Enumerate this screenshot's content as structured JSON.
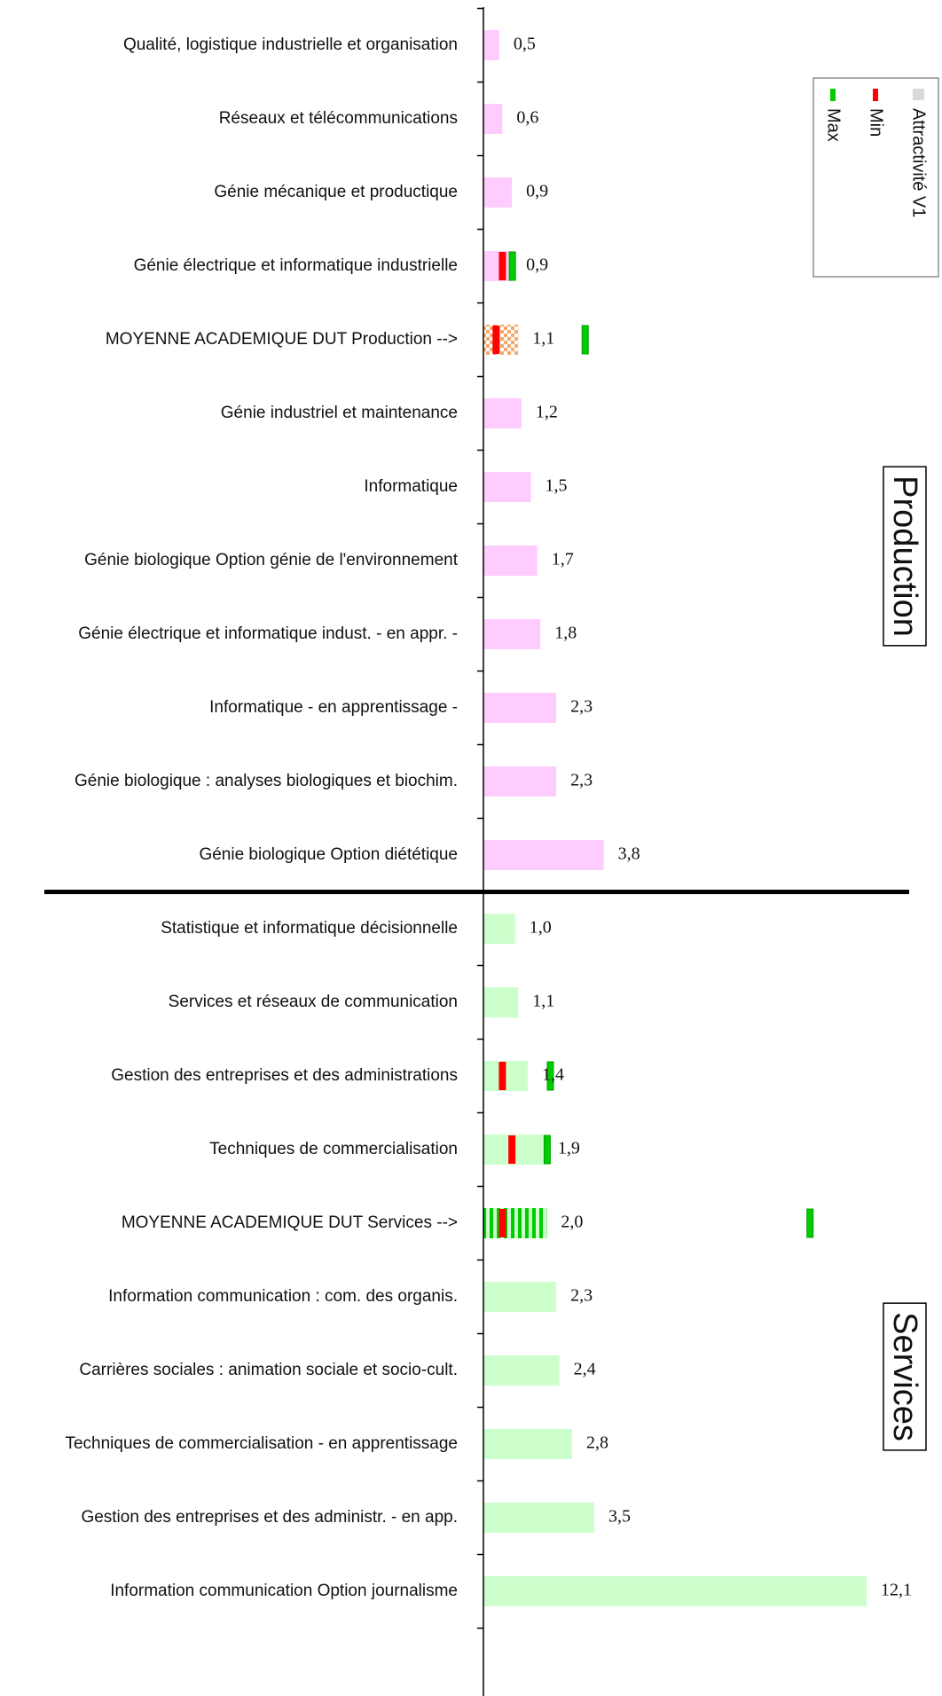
{
  "chart_data": {
    "type": "bar",
    "orientation": "horizontal",
    "xlim": [
      0,
      13
    ],
    "legend": {
      "placement": "top-right",
      "entries": [
        {
          "key": "attractivite",
          "label": "Attractivité V1",
          "color": "#d9d9d9"
        },
        {
          "key": "min",
          "label": "Min",
          "color": "#ff0000"
        },
        {
          "key": "max",
          "label": "Max",
          "color": "#00cc00"
        }
      ]
    },
    "colors": {
      "production_bar": "#ffccff",
      "services_bar": "#ccffcc",
      "min_marker": "#ff0000",
      "max_marker": "#00cc00",
      "production_average_pattern": "#f5a86b",
      "axis": "#000000"
    },
    "groups": [
      {
        "name": "Production",
        "color_key": "production_bar",
        "categories": [
          {
            "label": "Qualité, logistique industrielle et organisation",
            "value": 0.5,
            "value_label": "0,5"
          },
          {
            "label": "Réseaux et télécommunications",
            "value": 0.6,
            "value_label": "0,6"
          },
          {
            "label": "Génie mécanique et productique",
            "value": 0.9,
            "value_label": "0,9"
          },
          {
            "label": "Génie électrique et informatique industrielle",
            "value": 0.9,
            "value_label": "0,9",
            "min": 0.6,
            "max": 0.9
          },
          {
            "label": "MOYENNE ACADEMIQUE DUT Production  -->",
            "value": 1.1,
            "value_label": "1,1",
            "min": 0.4,
            "max": 3.2,
            "average": true,
            "pattern": "checker"
          },
          {
            "label": "Génie industriel et maintenance",
            "value": 1.2,
            "value_label": "1,2"
          },
          {
            "label": "Informatique",
            "value": 1.5,
            "value_label": "1,5"
          },
          {
            "label": "Génie biologique Option génie de l'environnement",
            "value": 1.7,
            "value_label": "1,7"
          },
          {
            "label": "Génie électrique et informatique indust. - en appr. -",
            "value": 1.8,
            "value_label": "1,8"
          },
          {
            "label": "Informatique - en apprentissage -",
            "value": 2.3,
            "value_label": "2,3"
          },
          {
            "label": "Génie biologique : analyses biologiques et biochim.",
            "value": 2.3,
            "value_label": "2,3"
          },
          {
            "label": "Génie biologique Option diététique",
            "value": 3.8,
            "value_label": "3,8"
          }
        ]
      },
      {
        "name": "Services",
        "color_key": "services_bar",
        "categories": [
          {
            "label": "Statistique et informatique décisionnelle",
            "value": 1.0,
            "value_label": "1,0"
          },
          {
            "label": "Services et réseaux de communication",
            "value": 1.1,
            "value_label": "1,1"
          },
          {
            "label": "Gestion des entreprises et des administrations",
            "value": 1.4,
            "value_label": "1,4",
            "min": 0.6,
            "max": 2.1
          },
          {
            "label": "Techniques de commercialisation",
            "value": 1.9,
            "value_label": "1,9",
            "min": 0.9,
            "max": 2.0
          },
          {
            "label": "MOYENNE ACADEMIQUE DUT Services  -->",
            "value": 2.0,
            "value_label": "2,0",
            "min": 0.6,
            "max": 10.3,
            "average": true,
            "pattern": "stripes"
          },
          {
            "label": "Information communication : com. des organis.",
            "value": 2.3,
            "value_label": "2,3"
          },
          {
            "label": "Carrières sociales : animation sociale et socio-cult.",
            "value": 2.4,
            "value_label": "2,4"
          },
          {
            "label": "Techniques de commercialisation - en apprentissage",
            "value": 2.8,
            "value_label": "2,8"
          },
          {
            "label": "Gestion des entreprises et des administr. - en app.",
            "value": 3.5,
            "value_label": "3,5"
          },
          {
            "label": "Information communication Option journalisme",
            "value": 12.1,
            "value_label": "12,1"
          }
        ]
      }
    ]
  }
}
